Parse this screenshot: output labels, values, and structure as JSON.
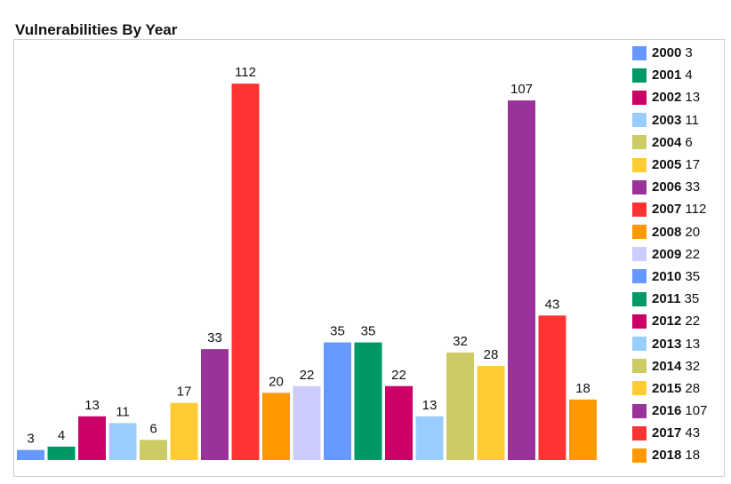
{
  "chart_data": {
    "type": "bar",
    "title": "Vulnerabilities By Year",
    "xlabel": "",
    "ylabel": "",
    "ylim": [
      0,
      125
    ],
    "grid": false,
    "legend_position": "right",
    "categories": [
      "2000",
      "2001",
      "2002",
      "2003",
      "2004",
      "2005",
      "2006",
      "2007",
      "2008",
      "2009",
      "2010",
      "2011",
      "2012",
      "2013",
      "2014",
      "2015",
      "2016",
      "2017",
      "2018"
    ],
    "values": [
      3,
      4,
      13,
      11,
      6,
      17,
      33,
      112,
      20,
      22,
      35,
      35,
      22,
      13,
      32,
      28,
      107,
      43,
      18
    ],
    "colors": [
      "#6699ff",
      "#009966",
      "#cc0066",
      "#99ccff",
      "#cccc66",
      "#ffcc33",
      "#993399",
      "#ff3333",
      "#ff9900",
      "#ccccff",
      "#6699ff",
      "#009966",
      "#cc0066",
      "#99ccff",
      "#cccc66",
      "#ffcc33",
      "#993399",
      "#ff3333",
      "#ff9900"
    ]
  }
}
